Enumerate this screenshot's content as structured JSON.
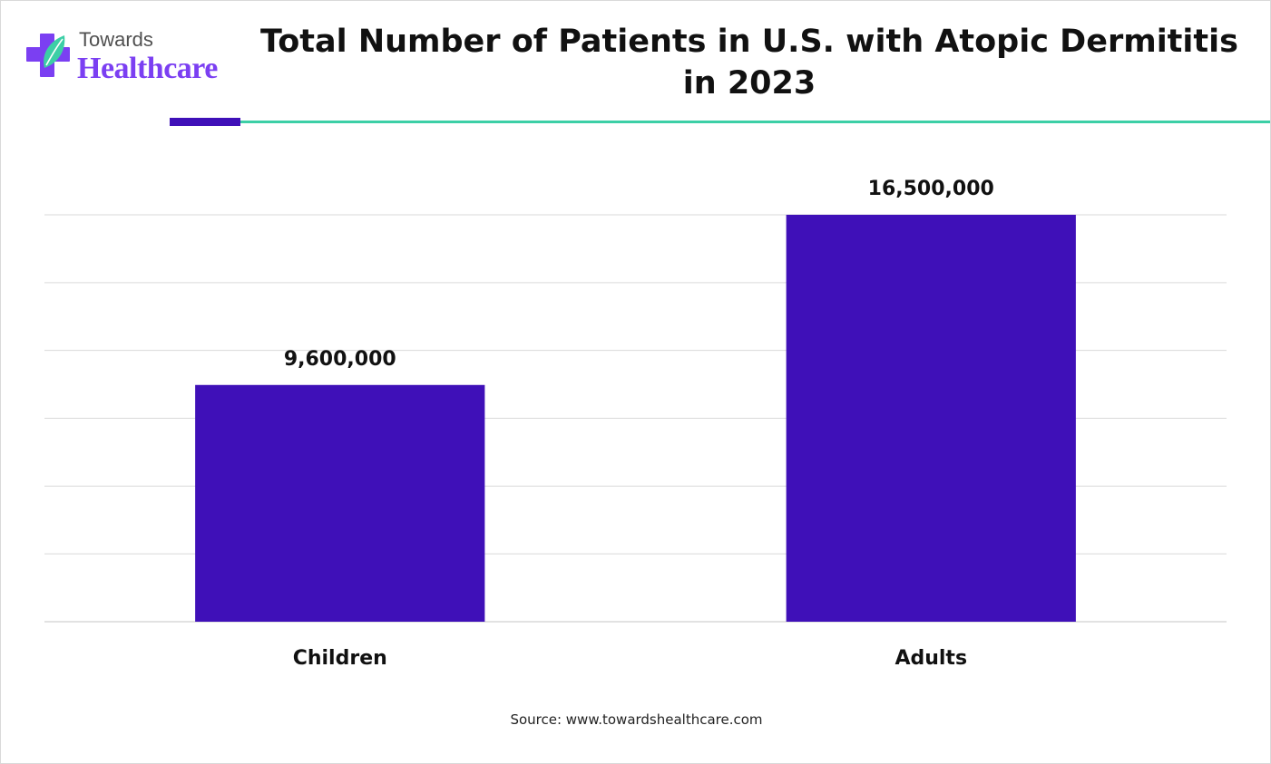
{
  "logo": {
    "line1": "Towards",
    "line2": "Healthcare",
    "mark_icon": "medical-cross-leaf-icon"
  },
  "colors": {
    "bar": "#3f10b8",
    "accent_purple": "#3f10b8",
    "accent_green": "#3ccfa6",
    "logo_purple": "#7b3ff2",
    "logo_teal": "#3ccfa6",
    "gridline": "#d9d9d9"
  },
  "chart_data": {
    "type": "bar",
    "title": "Total Number of Patients in U.S. with Atopic Dermititis in 2023",
    "categories": [
      "Children",
      "Adults"
    ],
    "values": [
      9600000,
      16500000
    ],
    "data_labels": [
      "9,600,000",
      "16,500,000"
    ],
    "xlabel": "",
    "ylabel": "",
    "ylim": [
      0,
      16500000
    ],
    "y_axis_labels_shown": false,
    "grid": true,
    "gridline_count": 7,
    "legend": "none"
  },
  "source": "Source: www.towardshealthcare.com"
}
